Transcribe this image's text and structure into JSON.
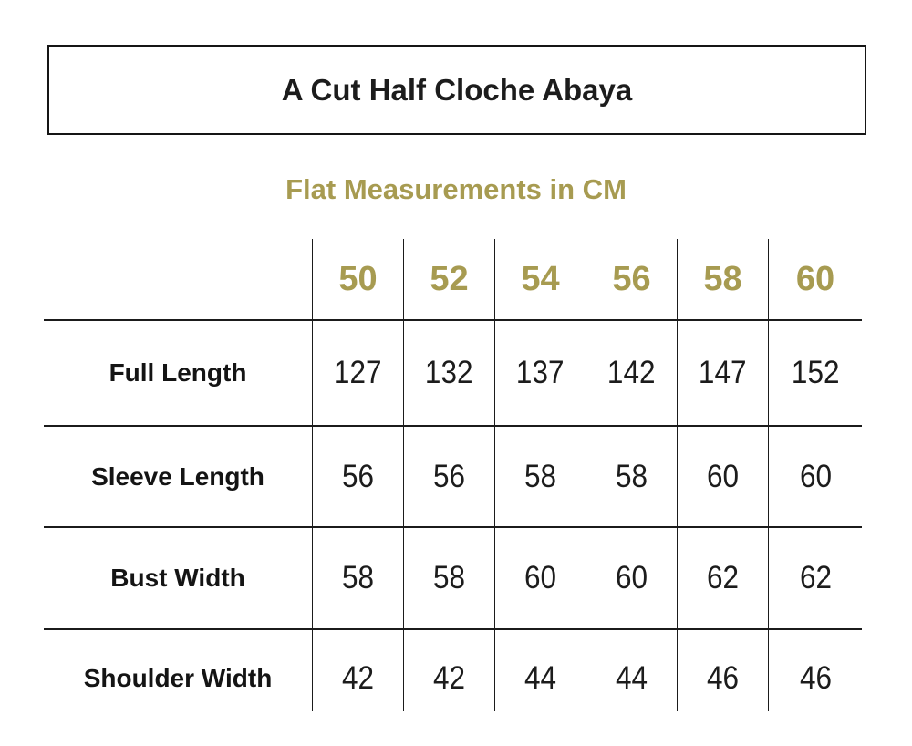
{
  "header": {
    "title": "A Cut Half Cloche Abaya",
    "subtitle": "Flat Measurements in CM"
  },
  "colors": {
    "accent_gold": "#a79b51",
    "text_black": "#1c1c1c",
    "grid_line": "#1b1b1b"
  },
  "table": {
    "sizes": [
      "50",
      "52",
      "54",
      "56",
      "58",
      "60"
    ],
    "rows": [
      {
        "label": "Full Length",
        "values": [
          "127",
          "132",
          "137",
          "142",
          "147",
          "152"
        ]
      },
      {
        "label": "Sleeve Length",
        "values": [
          "56",
          "56",
          "58",
          "58",
          "60",
          "60"
        ]
      },
      {
        "label": "Bust Width",
        "values": [
          "58",
          "58",
          "60",
          "60",
          "62",
          "62"
        ]
      },
      {
        "label": "Shoulder Width",
        "values": [
          "42",
          "42",
          "44",
          "44",
          "46",
          "46"
        ]
      }
    ]
  },
  "chart_data": {
    "type": "table",
    "title": "A Cut Half Cloche Abaya",
    "subtitle": "Flat Measurements in CM",
    "units": "cm",
    "columns": [
      "50",
      "52",
      "54",
      "56",
      "58",
      "60"
    ],
    "rows": [
      {
        "label": "Full Length",
        "values": [
          127,
          132,
          137,
          142,
          147,
          152
        ]
      },
      {
        "label": "Sleeve Length",
        "values": [
          56,
          56,
          58,
          58,
          60,
          60
        ]
      },
      {
        "label": "Bust Width",
        "values": [
          58,
          58,
          60,
          60,
          62,
          62
        ]
      },
      {
        "label": "Shoulder Width",
        "values": [
          42,
          42,
          44,
          44,
          46,
          46
        ]
      }
    ],
    "layout": {
      "header_text_color": "#a79b51",
      "grid_lines": "horizontal rows + internal vertical columns, no outer left/right/bottom border"
    }
  }
}
